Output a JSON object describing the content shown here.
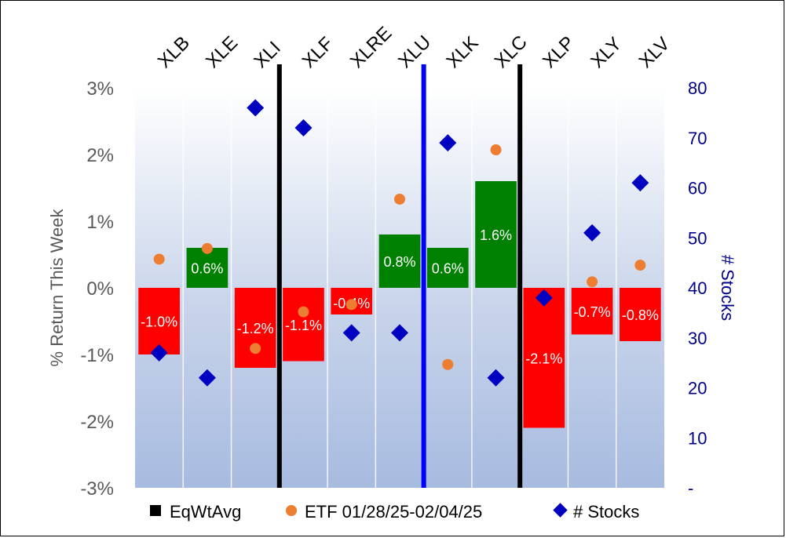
{
  "chart_data": {
    "type": "bar",
    "title": "",
    "categories": [
      "XLB",
      "XLE",
      "XLI",
      "XLF",
      "XLRE",
      "XLU",
      "XLK",
      "XLC",
      "XLP",
      "XLY",
      "XLV"
    ],
    "series": [
      {
        "name": "EqWtAvg",
        "axis": "left",
        "values": [
          -1.0,
          0.6,
          -1.2,
          -1.1,
          -0.4,
          0.8,
          0.6,
          1.6,
          -2.1,
          -0.7,
          -0.8
        ],
        "labels": [
          "-1.0%",
          "0.6%",
          "-1.2%",
          "-1.1%",
          "-0.4%",
          "0.8%",
          "0.6%",
          "1.6%",
          "-2.1%",
          "-0.7%",
          "-0.8%"
        ]
      },
      {
        "name": "ETF 01/28/25-02/04/25",
        "axis": "left",
        "type": "scatter",
        "values": [
          0.43,
          0.59,
          -0.91,
          -0.36,
          -0.25,
          1.33,
          -1.15,
          2.07,
          -0.14,
          0.09,
          0.34
        ]
      },
      {
        "name": "# Stocks",
        "axis": "right",
        "type": "scatter",
        "values": [
          27,
          22,
          76,
          72,
          31,
          31,
          69,
          22,
          38,
          51,
          61
        ]
      }
    ],
    "ylabel": "% Return This Week",
    "y2label": "# Stocks",
    "ylim": [
      -3,
      3
    ],
    "y2lim": [
      0,
      80
    ],
    "yticks": [
      "3%",
      "2%",
      "1%",
      "0%",
      "-1%",
      "-2%",
      "-3%"
    ],
    "y2ticks": [
      "80",
      "70",
      "60",
      "50",
      "40",
      "30",
      "20",
      "10",
      "-"
    ],
    "legend": [
      "EqWtAvg",
      "ETF 01/28/25-02/04/25",
      "# Stocks"
    ],
    "legend_position": "bottom",
    "dividers_after_category": [
      {
        "after": "XLI",
        "color": "#000000"
      },
      {
        "after": "XLU",
        "color": "#0000ff"
      },
      {
        "after": "XLC",
        "color": "#000000"
      }
    ],
    "colors": {
      "positive_bar": "#008000",
      "negative_bar": "#ff0000",
      "etf_marker": "#ed7d31",
      "stocks_marker": "#0000c0",
      "right_axis_text": "#00008b",
      "legend_eqwt": "#000000"
    }
  }
}
